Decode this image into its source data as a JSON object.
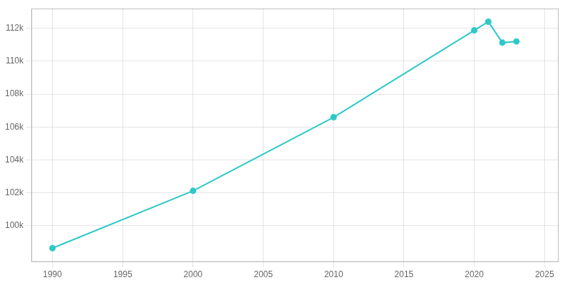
{
  "chart_data": {
    "type": "line",
    "x": [
      1990,
      2000,
      2010,
      2020,
      2021,
      2022,
      2023
    ],
    "values": [
      98640,
      102121,
      106595,
      111876,
      112401,
      111127,
      111200
    ],
    "color": "#2ec8c8",
    "marker": "circle",
    "xlim": [
      1988.5,
      2026
    ],
    "xticks": [
      1990,
      1995,
      2000,
      2005,
      2010,
      2015,
      2020,
      2025
    ],
    "ylim": [
      97800,
      113200
    ],
    "yticks": [
      {
        "value": 100000,
        "label": "100k"
      },
      {
        "value": 102000,
        "label": "102k"
      },
      {
        "value": 104000,
        "label": "104k"
      },
      {
        "value": 106000,
        "label": "106k"
      },
      {
        "value": 108000,
        "label": "108k"
      },
      {
        "value": 110000,
        "label": "110k"
      },
      {
        "value": 112000,
        "label": "112k"
      }
    ],
    "grid": true
  }
}
